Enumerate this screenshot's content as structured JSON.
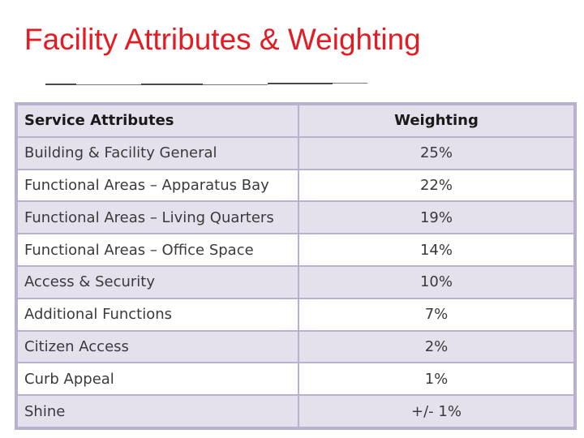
{
  "slide": {
    "title": "Facility Attributes & Weighting"
  },
  "table": {
    "headers": {
      "attribute": "Service Attributes",
      "weighting": "Weighting"
    },
    "rows": [
      {
        "attribute": "Building & Facility General",
        "weighting": "25%"
      },
      {
        "attribute": "Functional Areas – Apparatus Bay",
        "weighting": "22%"
      },
      {
        "attribute": "Functional Areas – Living Quarters",
        "weighting": "19%"
      },
      {
        "attribute": "Functional Areas – Office Space",
        "weighting": "14%"
      },
      {
        "attribute": "Access & Security",
        "weighting": "10%"
      },
      {
        "attribute": "Additional Functions",
        "weighting": "7%"
      },
      {
        "attribute": "Citizen Access",
        "weighting": "2%"
      },
      {
        "attribute": "Curb Appeal",
        "weighting": "1%"
      },
      {
        "attribute": "Shine",
        "weighting": "+/- 1%"
      }
    ]
  },
  "colors": {
    "title": "#e31b23",
    "row_shade": "#e4e1ec",
    "grid": "#b9b0cf"
  }
}
